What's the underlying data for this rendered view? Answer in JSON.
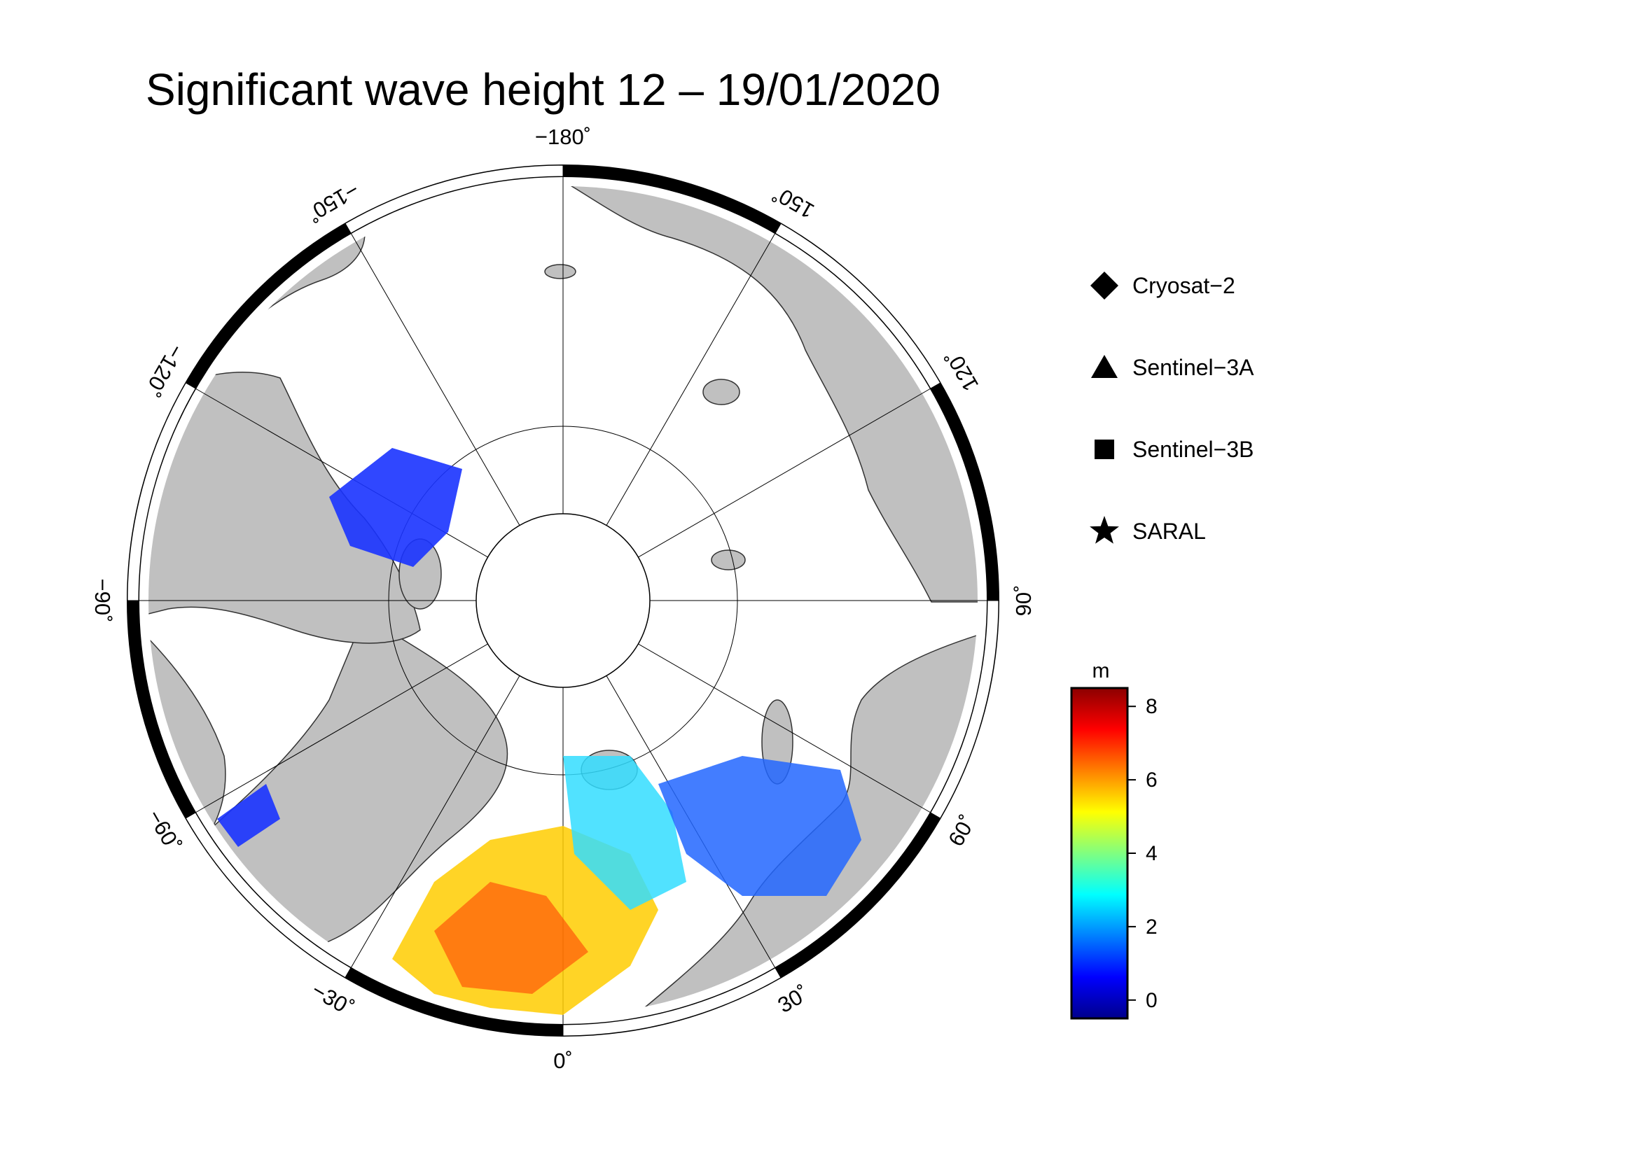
{
  "title": "Significant wave height 12 – 19/01/2020",
  "longitude_labels": [
    {
      "value": 180,
      "text": "−180˚"
    },
    {
      "value": -150,
      "text": "−150˚"
    },
    {
      "value": 150,
      "text": "150˚"
    },
    {
      "value": -120,
      "text": "−120˚"
    },
    {
      "value": 120,
      "text": "120˚"
    },
    {
      "value": -90,
      "text": "−90˚"
    },
    {
      "value": 90,
      "text": "90˚"
    },
    {
      "value": -60,
      "text": "−60˚"
    },
    {
      "value": 60,
      "text": "60˚"
    },
    {
      "value": -30,
      "text": "−30˚"
    },
    {
      "value": 30,
      "text": "30˚"
    },
    {
      "value": 0,
      "text": "0˚"
    }
  ],
  "legend": {
    "items": [
      {
        "shape": "diamond",
        "label": "Cryosat−2"
      },
      {
        "shape": "triangle",
        "label": "Sentinel−3A"
      },
      {
        "shape": "square",
        "label": "Sentinel−3B"
      },
      {
        "shape": "star",
        "label": "SARAL"
      }
    ]
  },
  "colorbar": {
    "unit": "m",
    "ticks": [
      "8",
      "6",
      "4",
      "2",
      "0"
    ],
    "range": [
      -0.5,
      8.5
    ],
    "colormap": [
      "#00008b",
      "#0000ff",
      "#0080ff",
      "#00ffff",
      "#80ff80",
      "#ffff00",
      "#ff8000",
      "#ff0000",
      "#8b0000"
    ]
  },
  "colors": {
    "land": "#c0c0c0",
    "ocean": "#ffffff",
    "frame": "#000000"
  }
}
